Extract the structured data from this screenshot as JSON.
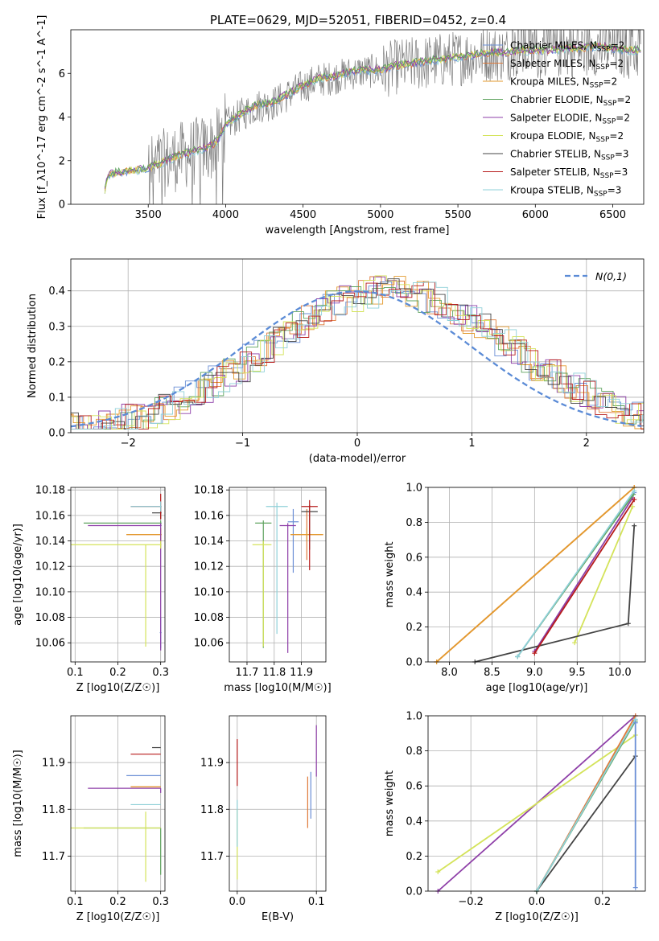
{
  "figure_title": "PLATE=0629, MJD=52051, FIBERID=0452, z=0.4",
  "colors": {
    "chabrier_miles": "#6b8fd6",
    "salpeter_miles": "#e07a3a",
    "kroupa_miles": "#e39a2e",
    "chabrier_elodie": "#5fa35f",
    "salpeter_elodie": "#8e3fa8",
    "kroupa_elodie": "#d4e35a",
    "chabrier_stelib": "#444444",
    "salpeter_stelib": "#b71c1c",
    "kroupa_stelib": "#8fd0d8",
    "data": "#7f7f7f",
    "gaussian": "#5b8bd6"
  },
  "chart_data": [
    {
      "id": "spectrum",
      "type": "line",
      "title": "PLATE=0629, MJD=52051, FIBERID=0452, z=0.4",
      "xlabel": "wavelength [Angstrom, rest frame]",
      "ylabel": "Flux [f_λ10^-17 erg cm^-2 s^-1 A^-1]",
      "xlim": [
        3000,
        6700
      ],
      "ylim": [
        0,
        8
      ],
      "xticks": [
        3500,
        4000,
        4500,
        5000,
        5500,
        6000,
        6500
      ],
      "yticks": [
        0,
        2,
        4,
        6
      ],
      "legend_position": "top-right",
      "legend": [
        {
          "label": "Chabrier MILES, N_SSP=2",
          "color_key": "chabrier_miles"
        },
        {
          "label": "Salpeter MILES, N_SSP=2",
          "color_key": "salpeter_miles"
        },
        {
          "label": "Kroupa MILES, N_SSP=2",
          "color_key": "kroupa_miles"
        },
        {
          "label": "Chabrier ELODIE, N_SSP=2",
          "color_key": "chabrier_elodie"
        },
        {
          "label": "Salpeter ELODIE, N_SSP=2",
          "color_key": "salpeter_elodie"
        },
        {
          "label": "Kroupa ELODIE, N_SSP=2",
          "color_key": "kroupa_elodie"
        },
        {
          "label": "Chabrier STELIB, N_SSP=3",
          "color_key": "chabrier_stelib"
        },
        {
          "label": "Salpeter STELIB, N_SSP=3",
          "color_key": "salpeter_stelib"
        },
        {
          "label": "Kroupa STELIB, N_SSP=3",
          "color_key": "kroupa_stelib"
        }
      ],
      "model_continuum": {
        "x": [
          3220,
          3240,
          3300,
          3400,
          3500,
          3600,
          3700,
          3800,
          3900,
          3950,
          4000,
          4100,
          4200,
          4300,
          4400,
          4500,
          4600,
          4700,
          4800,
          4900,
          5000,
          5100,
          5200,
          5300,
          5400,
          5500,
          5600,
          5700,
          5800,
          5900,
          6000,
          6100,
          6200,
          6300,
          6400,
          6500,
          6600
        ],
        "y": [
          0.6,
          1.3,
          1.4,
          1.5,
          1.6,
          1.9,
          2.2,
          2.4,
          2.6,
          2.9,
          3.6,
          4.1,
          4.5,
          4.6,
          5.0,
          5.4,
          5.7,
          5.8,
          6.0,
          6.1,
          6.1,
          6.3,
          6.4,
          6.5,
          6.6,
          6.7,
          6.8,
          6.9,
          6.9,
          7.0,
          7.0,
          7.0,
          7.1,
          7.1,
          7.2,
          7.1,
          7.0
        ]
      }
    },
    {
      "id": "residuals",
      "type": "line",
      "xlabel": "(data-model)/error",
      "ylabel": "Normed distribution",
      "xlim": [
        -2.5,
        2.5
      ],
      "ylim": [
        0,
        0.49
      ],
      "xticks": [
        -2,
        -1,
        0,
        1,
        2
      ],
      "yticks": [
        0.0,
        0.1,
        0.2,
        0.3,
        0.4
      ],
      "legend_position": "top-right",
      "legend": [
        {
          "label": "N(0,1)",
          "color_key": "gaussian"
        }
      ],
      "gaussian": {
        "mean": 0,
        "sigma": 1
      }
    },
    {
      "id": "age_vs_Z",
      "type": "scatter",
      "xlabel": "Z [log10(Z/Z☉)]",
      "ylabel": "age [log10(age/yr)]",
      "xlim": [
        0.09,
        0.31
      ],
      "ylim": [
        10.045,
        10.182
      ],
      "xticks": [
        0.1,
        0.2,
        0.3
      ],
      "yticks": [
        10.06,
        10.08,
        10.1,
        10.12,
        10.14,
        10.16,
        10.18
      ],
      "points": [
        {
          "color_key": "chabrier_miles",
          "x": 0.3,
          "y": 10.068,
          "xerr": [
            0.002,
            0.002
          ],
          "yerr": [
            0.012,
            0.012
          ]
        },
        {
          "color_key": "salpeter_miles",
          "x": 0.3,
          "y": 10.145,
          "xerr": [
            0.08,
            0.002
          ],
          "yerr": [
            0.005,
            0.005
          ]
        },
        {
          "color_key": "kroupa_miles",
          "x": 0.3,
          "y": 10.145,
          "xerr": [
            0.08,
            0.002
          ],
          "yerr": [
            0.005,
            0.005
          ]
        },
        {
          "color_key": "chabrier_elodie",
          "x": 0.3,
          "y": 10.154,
          "xerr": [
            0.18,
            0.002
          ],
          "yerr": [
            0.002,
            0.002
          ]
        },
        {
          "color_key": "salpeter_elodie",
          "x": 0.3,
          "y": 10.152,
          "xerr": [
            0.17,
            0.002
          ],
          "yerr": [
            0.098,
            0.002
          ]
        },
        {
          "color_key": "kroupa_elodie",
          "x": 0.3,
          "y": 10.137,
          "xerr": [
            0.21,
            0.002
          ],
          "yerr": [
            0.003,
            0.003
          ]
        },
        {
          "color_key": "chabrier_stelib",
          "x": 0.3,
          "y": 10.162,
          "xerr": [
            0.02,
            0.002
          ],
          "yerr": [
            0.005,
            0.005
          ]
        },
        {
          "color_key": "salpeter_stelib",
          "x": 0.3,
          "y": 10.167,
          "xerr": [
            0.07,
            0.002
          ],
          "yerr": [
            0.01,
            0.01
          ]
        },
        {
          "color_key": "kroupa_stelib",
          "x": 0.3,
          "y": 10.167,
          "xerr": [
            0.07,
            0.002
          ],
          "yerr": [
            0.004,
            0.004
          ]
        },
        {
          "color_key": "kroupa_elodie",
          "x": 0.265,
          "y": 10.137,
          "xerr": [
            0.0,
            0.0
          ],
          "yerr": [
            0.08,
            0.0
          ]
        }
      ]
    },
    {
      "id": "age_vs_mass",
      "type": "scatter",
      "xlabel": "mass [log10(M/M☉)]",
      "ylabel": "",
      "xlim": [
        11.635,
        11.99
      ],
      "ylim": [
        10.045,
        10.182
      ],
      "xticks": [
        11.7,
        11.8,
        11.9
      ],
      "yticks": [
        10.06,
        10.08,
        10.1,
        10.12,
        10.14,
        10.16,
        10.18
      ],
      "points": [
        {
          "color_key": "chabrier_miles",
          "x": 11.87,
          "y": 10.155,
          "xerr": [
            0.02,
            0.02
          ],
          "yerr": [
            0.04,
            0.01
          ]
        },
        {
          "color_key": "salpeter_miles",
          "x": 11.92,
          "y": 10.145,
          "xerr": [
            0.06,
            0.06
          ],
          "yerr": [
            0.02,
            0.02
          ]
        },
        {
          "color_key": "kroupa_miles",
          "x": 11.92,
          "y": 10.145,
          "xerr": [
            0.06,
            0.06
          ],
          "yerr": [
            0.005,
            0.005
          ]
        },
        {
          "color_key": "chabrier_elodie",
          "x": 11.76,
          "y": 10.154,
          "xerr": [
            0.03,
            0.03
          ],
          "yerr": [
            0.098,
            0.002
          ]
        },
        {
          "color_key": "salpeter_elodie",
          "x": 11.85,
          "y": 10.152,
          "xerr": [
            0.03,
            0.03
          ],
          "yerr": [
            0.1,
            0.002
          ]
        },
        {
          "color_key": "kroupa_elodie",
          "x": 11.76,
          "y": 10.137,
          "xerr": [
            0.04,
            0.03
          ],
          "yerr": [
            0.08,
            0.003
          ]
        },
        {
          "color_key": "chabrier_stelib",
          "x": 11.93,
          "y": 10.163,
          "xerr": [
            0.03,
            0.03
          ],
          "yerr": [
            0.03,
            0.005
          ]
        },
        {
          "color_key": "salpeter_stelib",
          "x": 11.93,
          "y": 10.167,
          "xerr": [
            0.03,
            0.03
          ],
          "yerr": [
            0.05,
            0.005
          ]
        },
        {
          "color_key": "kroupa_stelib",
          "x": 11.81,
          "y": 10.167,
          "xerr": [
            0.04,
            0.04
          ],
          "yerr": [
            0.1,
            0.003
          ]
        }
      ]
    },
    {
      "id": "weight_vs_age",
      "type": "line",
      "xlabel": "age [log10(age/yr)]",
      "ylabel": "mass weight",
      "xlim": [
        7.75,
        10.3
      ],
      "ylim": [
        0,
        1.0
      ],
      "xticks": [
        8.0,
        8.5,
        9.0,
        9.5,
        10.0
      ],
      "yticks": [
        0.0,
        0.2,
        0.4,
        0.6,
        0.8,
        1.0
      ],
      "series": [
        {
          "color_key": "salpeter_miles",
          "x": [
            7.85,
            10.17
          ],
          "y": [
            0.0,
            1.0
          ]
        },
        {
          "color_key": "kroupa_miles",
          "x": [
            7.85,
            10.17
          ],
          "y": [
            0.0,
            1.0
          ]
        },
        {
          "color_key": "chabrier_miles",
          "x": [
            8.8,
            10.17
          ],
          "y": [
            0.03,
            0.97
          ]
        },
        {
          "color_key": "salpeter_elodie",
          "x": [
            9.0,
            10.15
          ],
          "y": [
            0.06,
            0.94
          ]
        },
        {
          "color_key": "chabrier_elodie",
          "x": [
            8.8,
            10.16
          ],
          "y": [
            0.03,
            0.96
          ]
        },
        {
          "color_key": "kroupa_elodie",
          "x": [
            9.47,
            10.15
          ],
          "y": [
            0.11,
            0.89
          ]
        },
        {
          "color_key": "chabrier_stelib",
          "x": [
            8.3,
            10.1,
            10.17
          ],
          "y": [
            0.0,
            0.22,
            0.78
          ]
        },
        {
          "color_key": "salpeter_stelib",
          "x": [
            9.0,
            10.17
          ],
          "y": [
            0.05,
            0.93
          ]
        },
        {
          "color_key": "kroupa_stelib",
          "x": [
            8.8,
            10.17
          ],
          "y": [
            0.03,
            0.98
          ]
        }
      ]
    },
    {
      "id": "mass_vs_Z",
      "type": "scatter",
      "xlabel": "Z [log10(Z/Z☉)]",
      "ylabel": "mass [log10(M/M☉)]",
      "xlim": [
        0.09,
        0.31
      ],
      "ylim": [
        11.625,
        12.0
      ],
      "xticks": [
        0.1,
        0.2,
        0.3
      ],
      "yticks": [
        11.7,
        11.8,
        11.9
      ],
      "points": [
        {
          "color_key": "chabrier_miles",
          "x": 0.3,
          "y": 11.872,
          "xerr": [
            0.08,
            0.0
          ],
          "yerr": [
            0.0,
            0.0
          ]
        },
        {
          "color_key": "salpeter_miles",
          "x": 0.3,
          "y": 11.848,
          "xerr": [
            0.07,
            0.0
          ],
          "yerr": [
            0.0,
            0.0
          ]
        },
        {
          "color_key": "kroupa_miles",
          "x": 0.3,
          "y": 11.848,
          "xerr": [
            0.07,
            0.0
          ],
          "yerr": [
            0.0,
            0.0
          ]
        },
        {
          "color_key": "chabrier_elodie",
          "x": 0.3,
          "y": 11.76,
          "xerr": [
            0.18,
            0.0
          ],
          "yerr": [
            0.1,
            0.0
          ]
        },
        {
          "color_key": "salpeter_elodie",
          "x": 0.3,
          "y": 11.845,
          "xerr": [
            0.17,
            0.0
          ],
          "yerr": [
            0.01,
            0.0
          ]
        },
        {
          "color_key": "kroupa_elodie",
          "x": 0.3,
          "y": 11.76,
          "xerr": [
            0.21,
            0.0
          ],
          "yerr": [
            0.0,
            0.0
          ]
        },
        {
          "color_key": "kroupa_elodie",
          "x": 0.265,
          "y": 11.76,
          "xerr": [
            0.0,
            0.0
          ],
          "yerr": [
            0.115,
            0.035
          ]
        },
        {
          "color_key": "chabrier_stelib",
          "x": 0.3,
          "y": 11.932,
          "xerr": [
            0.02,
            0.0
          ],
          "yerr": [
            0.0,
            0.0
          ]
        },
        {
          "color_key": "salpeter_stelib",
          "x": 0.3,
          "y": 11.918,
          "xerr": [
            0.07,
            0.0
          ],
          "yerr": [
            0.0,
            0.0
          ]
        },
        {
          "color_key": "kroupa_stelib",
          "x": 0.3,
          "y": 11.81,
          "xerr": [
            0.07,
            0.0
          ],
          "yerr": [
            0.0,
            0.0
          ]
        }
      ]
    },
    {
      "id": "mass_vs_ebv",
      "type": "scatter",
      "xlabel": "E(B-V)",
      "ylabel": "",
      "xlim": [
        -0.01,
        0.112
      ],
      "ylim": [
        11.625,
        12.0
      ],
      "xticks": [
        0.0,
        0.1
      ],
      "yticks": [
        11.7,
        11.8,
        11.9
      ],
      "points": [
        {
          "color_key": "salpeter_stelib",
          "x": 0.0,
          "y": 11.9,
          "xerr": [
            0.0,
            0.0
          ],
          "yerr": [
            0.05,
            0.05
          ]
        },
        {
          "color_key": "salpeter_miles",
          "x": 0.089,
          "y": 11.82,
          "xerr": [
            0.0,
            0.0
          ],
          "yerr": [
            0.06,
            0.05
          ]
        },
        {
          "color_key": "chabrier_miles",
          "x": 0.093,
          "y": 11.83,
          "xerr": [
            0.0,
            0.0
          ],
          "yerr": [
            0.05,
            0.05
          ]
        },
        {
          "color_key": "salpeter_elodie",
          "x": 0.1,
          "y": 11.93,
          "xerr": [
            0.0,
            0.0
          ],
          "yerr": [
            0.06,
            0.05
          ]
        },
        {
          "color_key": "kroupa_elodie",
          "x": 0.0,
          "y": 11.75,
          "xerr": [
            0.0,
            0.0
          ],
          "yerr": [
            0.1,
            0.05
          ]
        },
        {
          "color_key": "kroupa_stelib",
          "x": 0.0,
          "y": 11.77,
          "xerr": [
            0.0,
            0.0
          ],
          "yerr": [
            0.05,
            0.05
          ]
        }
      ]
    },
    {
      "id": "weight_vs_Z",
      "type": "line",
      "xlabel": "Z [log10(Z/Z☉)]",
      "ylabel": "mass weight",
      "xlim": [
        -0.33,
        0.33
      ],
      "ylim": [
        0,
        1.0
      ],
      "xticks": [
        -0.2,
        0.0,
        0.2
      ],
      "yticks": [
        0.0,
        0.2,
        0.4,
        0.6,
        0.8,
        1.0
      ],
      "series": [
        {
          "color_key": "salpeter_elodie",
          "x": [
            -0.3,
            0.3
          ],
          "y": [
            0.0,
            1.0
          ]
        },
        {
          "color_key": "kroupa_elodie",
          "x": [
            -0.3,
            0.3
          ],
          "y": [
            0.11,
            0.89
          ]
        },
        {
          "color_key": "chabrier_stelib",
          "x": [
            0.0,
            0.3
          ],
          "y": [
            0.0,
            0.77
          ]
        },
        {
          "color_key": "salpeter_miles",
          "x": [
            0.0,
            0.3
          ],
          "y": [
            0.0,
            1.0
          ]
        },
        {
          "color_key": "chabrier_elodie",
          "x": [
            0.0,
            0.3
          ],
          "y": [
            0.0,
            0.97
          ]
        },
        {
          "color_key": "kroupa_stelib",
          "x": [
            0.0,
            0.3
          ],
          "y": [
            0.0,
            0.98
          ]
        },
        {
          "color_key": "chabrier_miles",
          "x": [
            0.3,
            0.3
          ],
          "y": [
            0.02,
            0.96
          ]
        }
      ]
    }
  ]
}
